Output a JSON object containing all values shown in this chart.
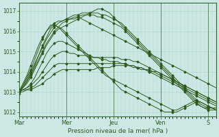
{
  "xlabel": "Pression niveau de la mer( hPa )",
  "bg_color": "#cde8e4",
  "grid_color": "#b0d4d0",
  "line_color": "#2d5a1b",
  "ylim": [
    1011.8,
    1017.4
  ],
  "yticks": [
    1012,
    1013,
    1014,
    1015,
    1016,
    1017
  ],
  "day_labels": [
    "Mar",
    "Mer",
    "Jeu",
    "Ven",
    "S"
  ],
  "day_positions": [
    0,
    48,
    96,
    144,
    192
  ],
  "xlim": [
    0,
    200
  ],
  "series": [
    {
      "xs": [
        0,
        4,
        8,
        12,
        16,
        20,
        24,
        28,
        32,
        36,
        40,
        44,
        48,
        52,
        56,
        60,
        64,
        68,
        72,
        76,
        80,
        84,
        88,
        92,
        96,
        100,
        104,
        108,
        112,
        116,
        120,
        124,
        128,
        132,
        136,
        140,
        144,
        148,
        152,
        156,
        160,
        164,
        168,
        172,
        176,
        180,
        184,
        188,
        192,
        196,
        200
      ],
      "ys": [
        1012.9,
        1013.3,
        1013.7,
        1014.1,
        1014.6,
        1015.1,
        1015.6,
        1016.0,
        1016.3,
        1016.3,
        1016.2,
        1016.1,
        1015.9,
        1015.7,
        1015.5,
        1015.3,
        1015.1,
        1014.9,
        1014.7,
        1014.5,
        1014.3,
        1014.1,
        1013.9,
        1013.7,
        1013.5,
        1013.3,
        1013.1,
        1013.0,
        1012.9,
        1012.8,
        1012.7,
        1012.6,
        1012.5,
        1012.4,
        1012.3,
        1012.2,
        1012.1,
        1012.0,
        1012.0,
        1012.0,
        1012.0,
        1012.1,
        1012.2,
        1012.3,
        1012.4,
        1012.5,
        1012.5,
        1012.4,
        1012.3,
        1012.2,
        1012.1
      ]
    },
    {
      "xs": [
        0,
        4,
        8,
        12,
        16,
        20,
        24,
        28,
        32,
        36,
        40,
        44,
        48,
        52,
        56,
        60,
        64,
        68,
        72,
        76,
        80,
        84,
        88,
        92,
        96,
        100,
        104,
        108,
        112,
        116,
        120,
        124,
        128,
        132,
        136,
        140,
        144,
        148,
        152,
        156,
        160,
        164,
        168,
        172,
        176,
        180,
        184,
        188,
        192,
        196,
        200
      ],
      "ys": [
        1013.0,
        1013.2,
        1013.5,
        1013.9,
        1014.3,
        1014.8,
        1015.3,
        1015.7,
        1016.1,
        1016.3,
        1016.2,
        1016.0,
        1015.8,
        1015.6,
        1015.4,
        1015.2,
        1015.0,
        1014.8,
        1014.6,
        1014.4,
        1014.2,
        1014.0,
        1013.8,
        1013.7,
        1013.6,
        1013.5,
        1013.4,
        1013.3,
        1013.2,
        1013.1,
        1013.0,
        1012.9,
        1012.8,
        1012.7,
        1012.6,
        1012.5,
        1012.4,
        1012.3,
        1012.2,
        1012.1,
        1012.1,
        1012.2,
        1012.3,
        1012.4,
        1012.5,
        1012.6,
        1012.5,
        1012.4,
        1012.3,
        1012.2,
        1012.1
      ]
    },
    {
      "xs": [
        0,
        4,
        8,
        12,
        16,
        20,
        24,
        28,
        32,
        36,
        40,
        44,
        48,
        52,
        56,
        60,
        64,
        68,
        72,
        76,
        80,
        84,
        88,
        92,
        96,
        100,
        104,
        108,
        112,
        116,
        120,
        124,
        128,
        132,
        136,
        140,
        144,
        148,
        152,
        156,
        160,
        164,
        168,
        172,
        176,
        180,
        184,
        188,
        192,
        196,
        200
      ],
      "ys": [
        1013.0,
        1013.1,
        1013.2,
        1013.4,
        1013.7,
        1014.1,
        1014.5,
        1014.9,
        1015.2,
        1015.4,
        1015.5,
        1015.5,
        1015.4,
        1015.3,
        1015.2,
        1015.1,
        1015.0,
        1014.9,
        1014.8,
        1014.7,
        1014.7,
        1014.6,
        1014.6,
        1014.5,
        1014.5,
        1014.5,
        1014.4,
        1014.4,
        1014.3,
        1014.3,
        1014.2,
        1014.2,
        1014.1,
        1014.0,
        1013.9,
        1013.8,
        1013.7,
        1013.6,
        1013.5,
        1013.4,
        1013.3,
        1013.2,
        1013.1,
        1013.0,
        1012.9,
        1012.8,
        1012.7,
        1012.6,
        1012.5,
        1012.4,
        1012.3
      ]
    },
    {
      "xs": [
        0,
        4,
        8,
        12,
        16,
        20,
        24,
        28,
        32,
        36,
        40,
        44,
        48,
        52,
        56,
        60,
        64,
        68,
        72,
        76,
        80,
        84,
        88,
        92,
        96,
        100,
        104,
        108,
        112,
        116,
        120,
        124,
        128,
        132,
        136,
        140,
        144,
        148,
        152,
        156,
        160,
        164,
        168,
        172,
        176,
        180,
        184,
        188,
        192,
        196,
        200
      ],
      "ys": [
        1013.0,
        1013.1,
        1013.2,
        1013.3,
        1013.5,
        1013.7,
        1014.0,
        1014.3,
        1014.6,
        1014.8,
        1014.9,
        1015.0,
        1015.0,
        1014.9,
        1014.9,
        1014.8,
        1014.8,
        1014.8,
        1014.7,
        1014.7,
        1014.7,
        1014.7,
        1014.7,
        1014.7,
        1014.7,
        1014.7,
        1014.6,
        1014.6,
        1014.6,
        1014.5,
        1014.5,
        1014.4,
        1014.3,
        1014.2,
        1014.1,
        1014.0,
        1013.9,
        1013.8,
        1013.7,
        1013.6,
        1013.5,
        1013.4,
        1013.3,
        1013.2,
        1013.1,
        1013.0,
        1012.9,
        1012.8,
        1012.7,
        1012.6,
        1012.5
      ]
    },
    {
      "xs": [
        0,
        4,
        8,
        12,
        16,
        20,
        24,
        28,
        32,
        36,
        40,
        44,
        48,
        52,
        56,
        60,
        64,
        68,
        72,
        76,
        80,
        84,
        88,
        92,
        96,
        100,
        104,
        108,
        112,
        116,
        120,
        124,
        128,
        132,
        136,
        140,
        144,
        148,
        152,
        156,
        160,
        164,
        168,
        172,
        176,
        180,
        184,
        188,
        192,
        196,
        200
      ],
      "ys": [
        1013.0,
        1013.1,
        1013.1,
        1013.2,
        1013.3,
        1013.5,
        1013.7,
        1013.9,
        1014.1,
        1014.3,
        1014.4,
        1014.4,
        1014.4,
        1014.4,
        1014.4,
        1014.4,
        1014.4,
        1014.4,
        1014.4,
        1014.4,
        1014.4,
        1014.4,
        1014.4,
        1014.4,
        1014.4,
        1014.4,
        1014.4,
        1014.4,
        1014.3,
        1014.3,
        1014.2,
        1014.2,
        1014.1,
        1014.1,
        1014.0,
        1014.0,
        1013.9,
        1013.8,
        1013.7,
        1013.6,
        1013.5,
        1013.4,
        1013.3,
        1013.2,
        1013.1,
        1013.0,
        1012.9,
        1012.8,
        1012.7,
        1012.6,
        1012.5
      ]
    },
    {
      "xs": [
        0,
        4,
        8,
        12,
        16,
        20,
        24,
        28,
        32,
        36,
        40,
        44,
        48,
        52,
        56,
        60,
        64,
        68,
        72,
        76,
        80,
        84,
        88,
        92,
        96,
        100,
        104,
        108,
        112,
        116,
        120,
        124,
        128,
        132,
        136,
        140,
        144,
        148,
        152,
        156,
        160,
        164,
        168,
        172,
        176,
        180,
        184,
        188,
        192,
        196,
        200
      ],
      "ys": [
        1013.0,
        1013.0,
        1013.1,
        1013.1,
        1013.2,
        1013.3,
        1013.4,
        1013.6,
        1013.7,
        1013.9,
        1014.0,
        1014.1,
        1014.1,
        1014.1,
        1014.1,
        1014.1,
        1014.1,
        1014.1,
        1014.1,
        1014.1,
        1014.2,
        1014.2,
        1014.2,
        1014.2,
        1014.3,
        1014.3,
        1014.3,
        1014.3,
        1014.3,
        1014.2,
        1014.2,
        1014.1,
        1014.1,
        1014.0,
        1014.0,
        1013.9,
        1013.8,
        1013.7,
        1013.6,
        1013.5,
        1013.4,
        1013.3,
        1013.2,
        1013.1,
        1013.0,
        1012.9,
        1012.8,
        1012.7,
        1012.6,
        1012.5,
        1012.4
      ]
    },
    {
      "xs": [
        0,
        4,
        8,
        12,
        16,
        20,
        24,
        28,
        32,
        36,
        40,
        44,
        48,
        52,
        56,
        60,
        64,
        68,
        72,
        76,
        80,
        84,
        88,
        92,
        96,
        100,
        104,
        108,
        112,
        116,
        120,
        124,
        128,
        132,
        136,
        140,
        144,
        148,
        152,
        156,
        160,
        164,
        168,
        172,
        176,
        180,
        184,
        188,
        192,
        196,
        200
      ],
      "ys": [
        1013.0,
        1013.2,
        1013.4,
        1013.7,
        1014.1,
        1014.5,
        1014.9,
        1015.3,
        1015.6,
        1015.9,
        1016.1,
        1016.2,
        1016.3,
        1016.4,
        1016.5,
        1016.6,
        1016.7,
        1016.8,
        1016.9,
        1017.0,
        1017.1,
        1017.1,
        1017.0,
        1016.9,
        1016.7,
        1016.5,
        1016.3,
        1016.1,
        1015.9,
        1015.7,
        1015.5,
        1015.3,
        1015.1,
        1014.9,
        1014.7,
        1014.5,
        1014.3,
        1014.1,
        1013.9,
        1013.7,
        1013.5,
        1013.3,
        1013.1,
        1012.9,
        1012.7,
        1012.5,
        1012.3,
        1012.2,
        1012.1,
        1012.1,
        1012.1
      ]
    },
    {
      "xs": [
        0,
        4,
        8,
        12,
        16,
        20,
        24,
        28,
        32,
        36,
        40,
        44,
        48,
        52,
        56,
        60,
        64,
        68,
        72,
        76,
        80,
        84,
        88,
        92,
        96,
        100,
        104,
        108,
        112,
        116,
        120,
        124,
        128,
        132,
        136,
        140,
        144,
        148,
        152,
        156,
        160,
        164,
        168,
        172,
        176,
        180,
        184,
        188,
        192,
        196,
        200
      ],
      "ys": [
        1013.0,
        1013.2,
        1013.5,
        1013.8,
        1014.2,
        1014.6,
        1015.0,
        1015.4,
        1015.7,
        1016.0,
        1016.2,
        1016.4,
        1016.5,
        1016.6,
        1016.7,
        1016.7,
        1016.8,
        1016.8,
        1016.8,
        1016.8,
        1016.7,
        1016.7,
        1016.6,
        1016.5,
        1016.4,
        1016.3,
        1016.2,
        1016.0,
        1015.8,
        1015.6,
        1015.4,
        1015.2,
        1015.0,
        1014.8,
        1014.6,
        1014.4,
        1014.2,
        1014.0,
        1013.8,
        1013.6,
        1013.4,
        1013.2,
        1013.0,
        1012.8,
        1012.6,
        1012.4,
        1012.3,
        1012.2,
        1012.2,
        1012.2,
        1012.2
      ]
    },
    {
      "xs": [
        0,
        4,
        8,
        12,
        16,
        20,
        24,
        28,
        32,
        36,
        40,
        44,
        48,
        52,
        56,
        60,
        64,
        68,
        72,
        76,
        80,
        84,
        88,
        92,
        96,
        100,
        104,
        108,
        112,
        116,
        120,
        124,
        128,
        132,
        136,
        140,
        144,
        148,
        152,
        156,
        160,
        164,
        168,
        172,
        176,
        180,
        184,
        188,
        192,
        196,
        200
      ],
      "ys": [
        1013.0,
        1013.3,
        1013.6,
        1014.0,
        1014.4,
        1014.8,
        1015.2,
        1015.6,
        1015.9,
        1016.2,
        1016.4,
        1016.5,
        1016.6,
        1016.7,
        1016.8,
        1016.8,
        1016.9,
        1016.9,
        1016.9,
        1016.9,
        1016.9,
        1016.8,
        1016.8,
        1016.7,
        1016.6,
        1016.5,
        1016.4,
        1016.2,
        1016.0,
        1015.8,
        1015.6,
        1015.4,
        1015.2,
        1015.0,
        1014.8,
        1014.6,
        1014.4,
        1014.2,
        1014.0,
        1013.8,
        1013.6,
        1013.4,
        1013.2,
        1013.0,
        1012.8,
        1012.6,
        1012.4,
        1012.3,
        1012.2,
        1012.2,
        1012.2
      ]
    },
    {
      "xs": [
        0,
        4,
        8,
        12,
        16,
        20,
        24,
        28,
        32,
        36,
        40,
        44,
        48,
        52,
        56,
        60,
        64,
        68,
        72,
        76,
        80,
        84,
        88,
        92,
        96,
        100,
        104,
        108,
        112,
        116,
        120,
        124,
        128,
        132,
        136,
        140,
        144,
        148,
        152,
        156,
        160,
        164,
        168,
        172,
        176,
        180,
        184,
        188,
        192,
        196,
        200
      ],
      "ys": [
        1013.0,
        1013.4,
        1013.8,
        1014.3,
        1014.8,
        1015.3,
        1015.7,
        1016.0,
        1016.2,
        1016.4,
        1016.5,
        1016.5,
        1016.6,
        1016.6,
        1016.6,
        1016.7,
        1016.6,
        1016.5,
        1016.4,
        1016.3,
        1016.2,
        1016.1,
        1016.0,
        1015.9,
        1015.8,
        1015.7,
        1015.6,
        1015.5,
        1015.4,
        1015.3,
        1015.2,
        1015.1,
        1015.0,
        1014.9,
        1014.8,
        1014.7,
        1014.6,
        1014.5,
        1014.4,
        1014.3,
        1014.2,
        1014.1,
        1014.0,
        1013.9,
        1013.8,
        1013.7,
        1013.6,
        1013.5,
        1013.4,
        1013.3,
        1013.2
      ]
    }
  ]
}
